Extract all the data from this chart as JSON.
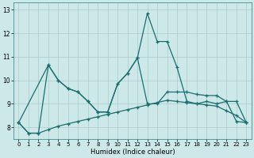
{
  "xlabel": "Humidex (Indice chaleur)",
  "background_color": "#cce8e8",
  "grid_color": "#aacccc",
  "line_color": "#1a6e6e",
  "xlim": [
    -0.5,
    23.5
  ],
  "ylim": [
    7.5,
    13.3
  ],
  "xticks": [
    0,
    1,
    2,
    3,
    4,
    5,
    6,
    7,
    8,
    9,
    10,
    11,
    12,
    13,
    14,
    15,
    16,
    17,
    18,
    19,
    20,
    21,
    22,
    23
  ],
  "yticks": [
    8,
    9,
    10,
    11,
    12,
    13
  ],
  "line1_x": [
    0,
    1,
    2,
    3,
    4,
    5,
    6,
    7,
    8,
    9,
    10,
    11,
    12,
    13,
    14,
    15,
    16,
    17,
    18,
    19,
    20,
    21,
    22,
    23
  ],
  "line1_y": [
    8.2,
    7.75,
    7.75,
    10.65,
    10.0,
    9.65,
    9.5,
    9.1,
    8.65,
    8.65,
    9.85,
    10.3,
    10.95,
    12.85,
    11.65,
    11.65,
    10.55,
    9.1,
    9.0,
    9.1,
    9.0,
    9.1,
    8.25,
    8.2
  ],
  "line2_x": [
    0,
    3,
    4,
    5,
    6,
    7,
    8,
    9,
    10,
    11,
    12,
    13,
    14,
    15,
    16,
    17,
    18,
    19,
    20,
    21,
    22,
    23
  ],
  "line2_y": [
    8.2,
    10.65,
    10.0,
    9.65,
    9.5,
    9.1,
    8.65,
    8.65,
    9.85,
    10.3,
    10.95,
    9.0,
    9.0,
    9.5,
    9.5,
    9.5,
    9.4,
    9.35,
    9.35,
    9.1,
    9.1,
    8.2
  ],
  "line3_x": [
    0,
    1,
    2,
    3,
    4,
    5,
    6,
    7,
    8,
    9,
    10,
    11,
    12,
    13,
    14,
    15,
    16,
    17,
    18,
    19,
    20,
    21,
    22,
    23
  ],
  "line3_y": [
    8.2,
    7.75,
    7.75,
    7.9,
    8.05,
    8.15,
    8.25,
    8.35,
    8.45,
    8.55,
    8.65,
    8.75,
    8.85,
    8.95,
    9.05,
    9.15,
    9.1,
    9.05,
    9.0,
    8.95,
    8.9,
    8.7,
    8.5,
    8.2
  ]
}
